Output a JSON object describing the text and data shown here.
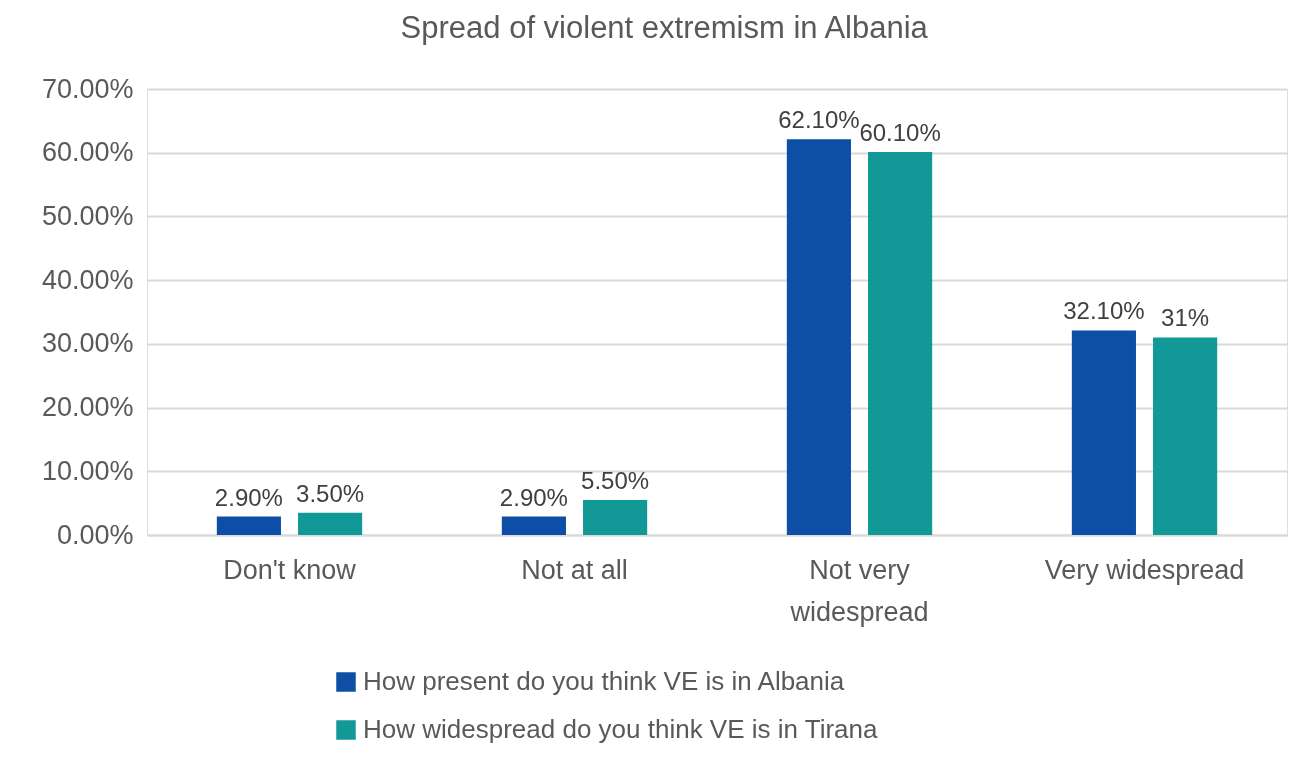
{
  "chart_data": {
    "type": "bar",
    "title": "Spread of violent extremism in Albania",
    "categories": [
      "Don't know",
      "Not at all",
      "Not very widespread",
      "Very widespread"
    ],
    "series": [
      {
        "name": "How present do you think VE is in Albania",
        "color": "#0d4ea6",
        "values": [
          2.9,
          2.9,
          62.1,
          32.1
        ],
        "value_labels": [
          "2.90%",
          "2.90%",
          "62.10%",
          "32.10%"
        ]
      },
      {
        "name": "How widespread do you think VE is in Tirana",
        "color": "#129896",
        "values": [
          3.5,
          5.5,
          60.1,
          31
        ],
        "value_labels": [
          "3.50%",
          "5.50%",
          "60.10%",
          "31%"
        ]
      }
    ],
    "ylim": [
      0,
      70
    ],
    "yticks": [
      {
        "value": 0,
        "label": "0.00%"
      },
      {
        "value": 10,
        "label": "10.00%"
      },
      {
        "value": 20,
        "label": "20.00%"
      },
      {
        "value": 30,
        "label": "30.00%"
      },
      {
        "value": 40,
        "label": "40.00%"
      },
      {
        "value": 50,
        "label": "50.00%"
      },
      {
        "value": 60,
        "label": "60.00%"
      },
      {
        "value": 70,
        "label": "70.00%"
      }
    ],
    "grid": "y",
    "legend": "bottom"
  }
}
